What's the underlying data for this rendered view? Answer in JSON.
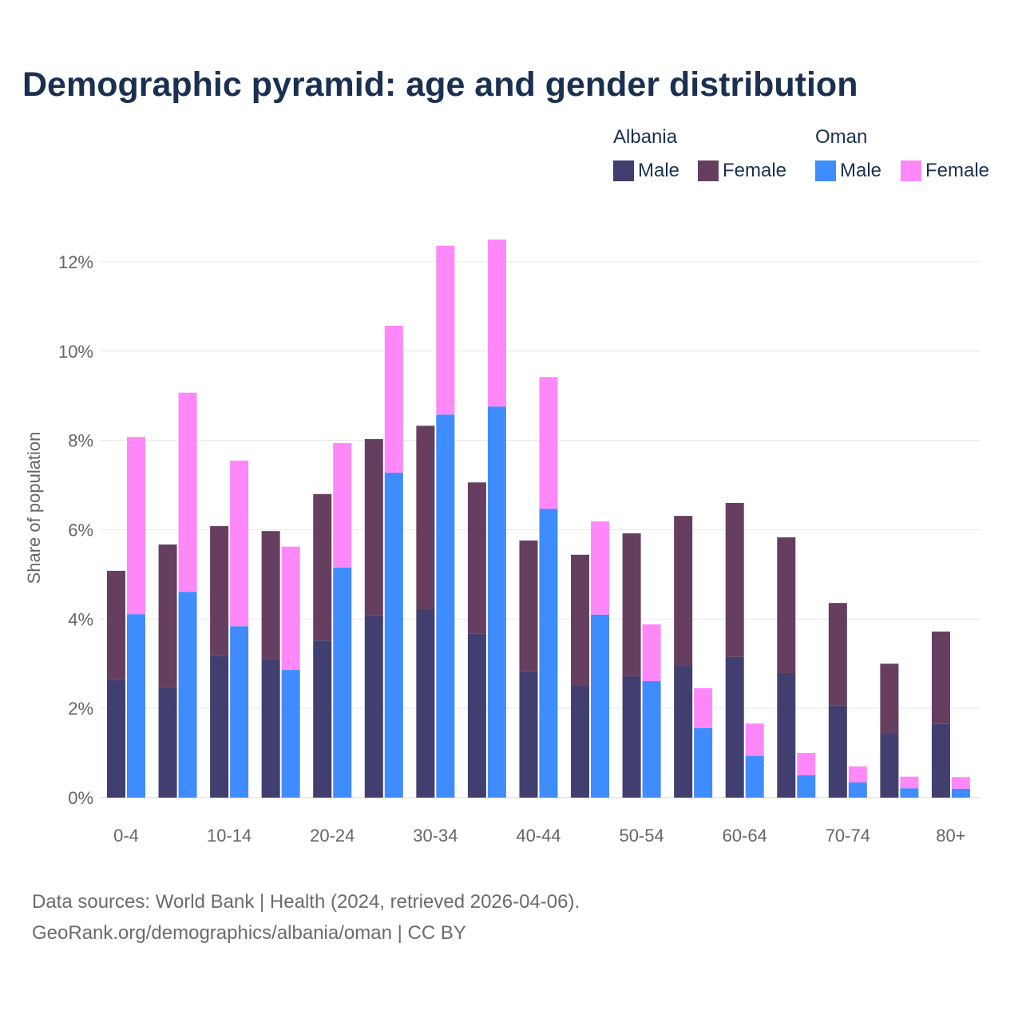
{
  "chart_data": {
    "type": "bar",
    "title": "Demographic pyramid: age and gender distribution",
    "ylabel": "Share of population",
    "xlabel": "",
    "ylim": [
      0,
      12.6
    ],
    "yticks": [
      0,
      2,
      4,
      6,
      8,
      10,
      12
    ],
    "ytick_labels": [
      "0%",
      "2%",
      "4%",
      "6%",
      "8%",
      "10%",
      "12%"
    ],
    "categories": [
      "0-4",
      "5-9",
      "10-14",
      "15-19",
      "20-24",
      "25-29",
      "30-34",
      "35-39",
      "40-44",
      "45-49",
      "50-54",
      "55-59",
      "60-64",
      "65-69",
      "70-74",
      "75-79",
      "80+"
    ],
    "shown_tick_labels": [
      "0-4",
      "10-14",
      "20-24",
      "30-34",
      "40-44",
      "50-54",
      "60-64",
      "70-74",
      "80+"
    ],
    "grid": true,
    "legend_placement": "top-right",
    "stacked": true,
    "countries": [
      {
        "name": "Albania",
        "series": [
          {
            "name": "Male",
            "color": "#413f6f",
            "values": [
              2.63,
              2.47,
              3.18,
              3.11,
              3.52,
              4.08,
              4.22,
              3.68,
              2.83,
              2.52,
              2.72,
              2.95,
              3.15,
              2.79,
              2.07,
              1.43,
              1.65
            ]
          },
          {
            "name": "Female",
            "color": "#663f60",
            "values": [
              2.45,
              3.2,
              2.9,
              2.86,
              3.28,
              3.95,
              4.11,
              3.38,
              2.93,
              2.92,
              3.2,
              3.36,
              3.45,
              3.04,
              2.29,
              1.57,
              2.07
            ]
          }
        ]
      },
      {
        "name": "Oman",
        "series": [
          {
            "name": "Male",
            "color": "#3f8cff",
            "values": [
              4.11,
              4.61,
              3.84,
              2.86,
              5.15,
              7.28,
              8.58,
              8.76,
              6.47,
              4.1,
              2.61,
              1.56,
              0.93,
              0.5,
              0.34,
              0.21,
              0.2
            ]
          },
          {
            "name": "Female",
            "color": "#ff88f8",
            "values": [
              3.97,
              4.46,
              3.71,
              2.76,
              2.79,
              3.29,
              3.78,
              3.74,
              2.95,
              2.09,
              1.27,
              0.89,
              0.73,
              0.5,
              0.36,
              0.26,
              0.26
            ]
          }
        ]
      }
    ]
  },
  "footer": {
    "line1": "Data sources: World Bank | Health (2024, retrieved 2026-04-06).",
    "line2": "GeoRank.org/demographics/albania/oman | CC BY"
  }
}
